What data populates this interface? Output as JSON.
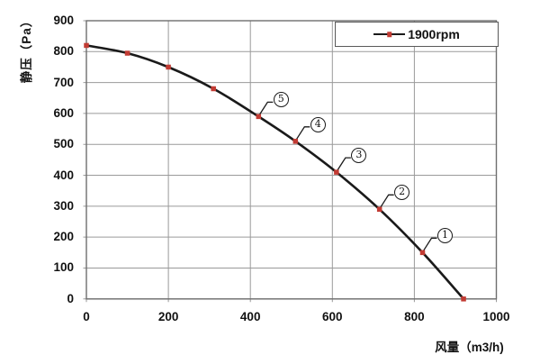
{
  "chart_data": {
    "type": "line",
    "title": "",
    "xlabel": "风量（m3/h)",
    "ylabel": "静压（Pa）",
    "xlim": [
      0,
      1000
    ],
    "ylim": [
      0,
      900
    ],
    "xticks": [
      0,
      200,
      400,
      600,
      800,
      1000
    ],
    "yticks": [
      0,
      100,
      200,
      300,
      400,
      500,
      600,
      700,
      800,
      900
    ],
    "grid": true,
    "legend": {
      "position": "top-inside-right",
      "boxed": true
    },
    "series": [
      {
        "name": "1900rpm",
        "color": "#1a1a1a",
        "marker": "square",
        "marker_color": "#c23b33",
        "points": [
          [
            0,
            820
          ],
          [
            100,
            795
          ],
          [
            200,
            750
          ],
          [
            310,
            680
          ],
          [
            420,
            590
          ],
          [
            510,
            510
          ],
          [
            610,
            410
          ],
          [
            715,
            290
          ],
          [
            820,
            150
          ],
          [
            920,
            0
          ]
        ]
      }
    ],
    "annotations": [
      {
        "text": "5",
        "x": 420,
        "y": 590
      },
      {
        "text": "4",
        "x": 510,
        "y": 510
      },
      {
        "text": "3",
        "x": 610,
        "y": 410
      },
      {
        "text": "2",
        "x": 715,
        "y": 290
      },
      {
        "text": "1",
        "x": 820,
        "y": 150
      }
    ]
  },
  "colors": {
    "grid": "#9a9a9a",
    "plot_border": "#6e6e6e",
    "curve": "#1a1a1a",
    "marker": "#c23b33",
    "leader": "#1a1a1a",
    "text": "#111111",
    "background": "#ffffff"
  }
}
